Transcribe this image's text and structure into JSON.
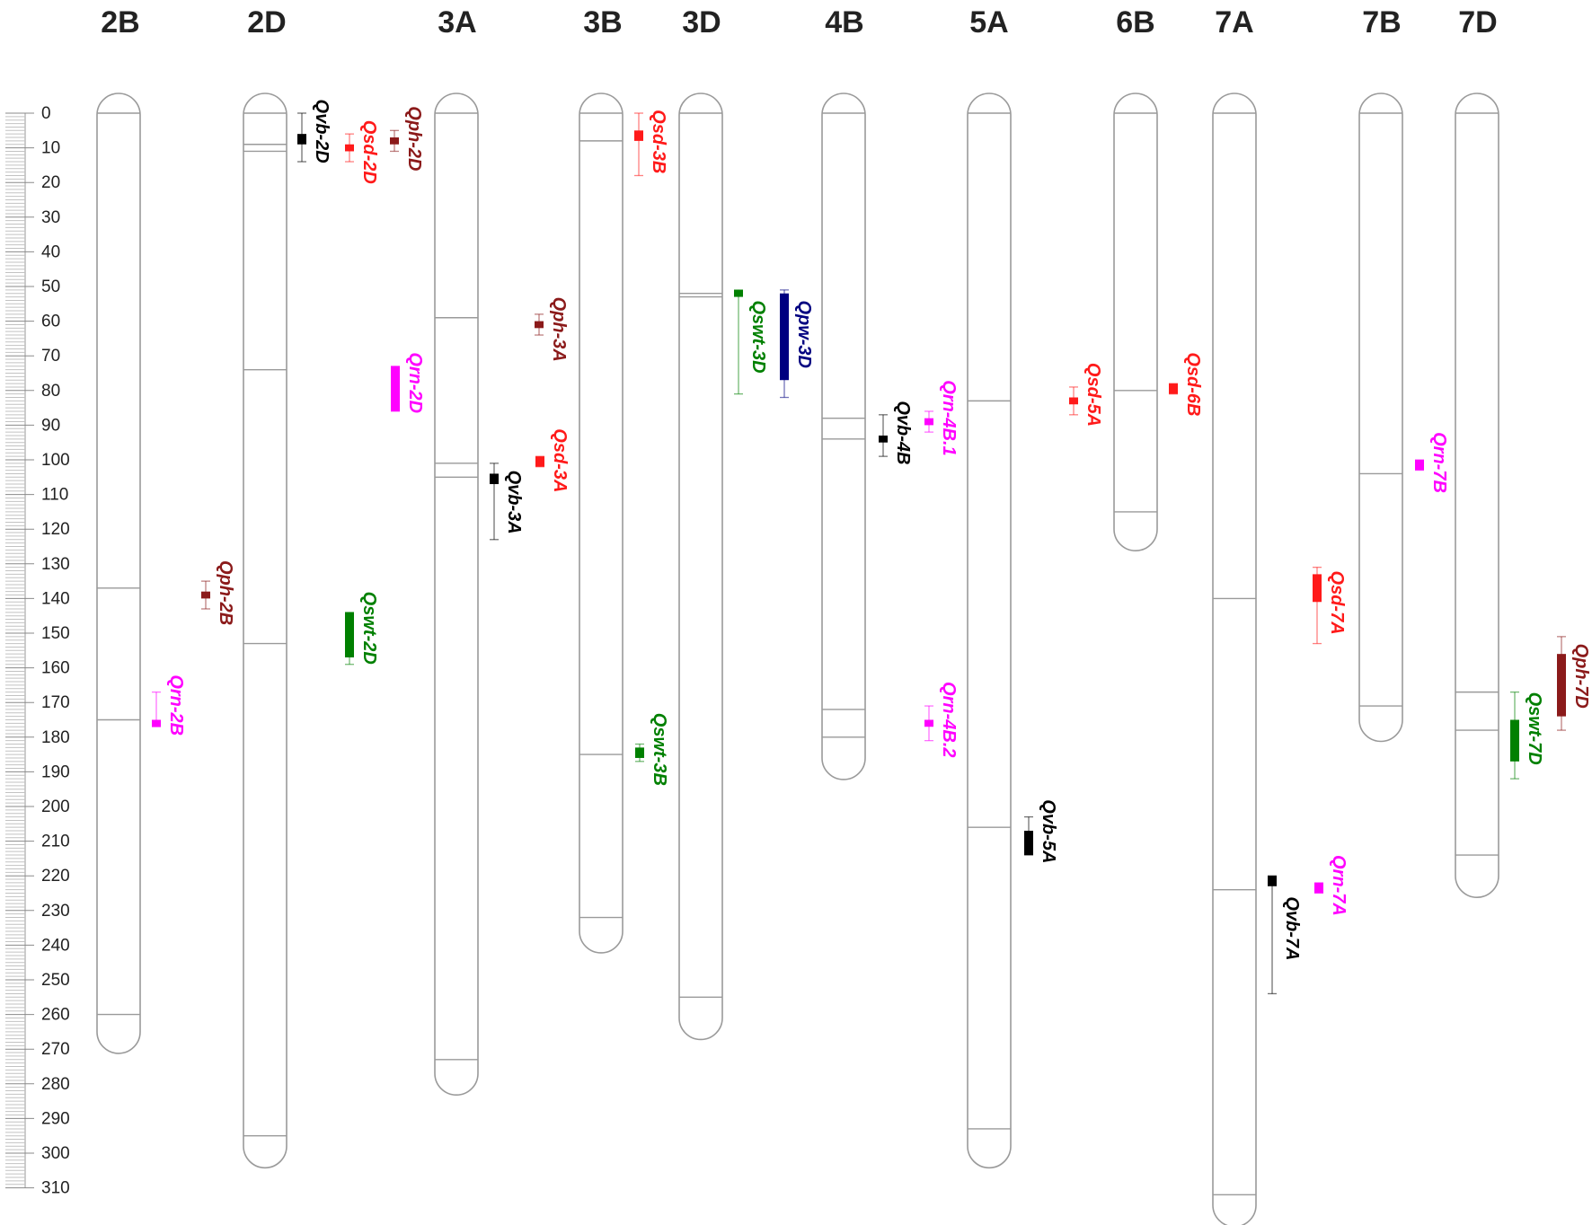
{
  "axis": {
    "unit": "cM",
    "min": 0,
    "max": 310,
    "major_step": 10,
    "minor_step": 1
  },
  "colors": {
    "outline": "#9a9a9a",
    "text": "#222222"
  },
  "chromosomes": [
    {
      "name": "2B",
      "length": 265,
      "bands": [
        0,
        137,
        175,
        260
      ]
    },
    {
      "name": "2D",
      "length": 298,
      "bands": [
        0,
        9,
        11,
        74,
        153,
        295
      ]
    },
    {
      "name": "3A",
      "length": 277,
      "bands": [
        0,
        59,
        101,
        105,
        273
      ]
    },
    {
      "name": "3B",
      "length": 236,
      "bands": [
        0,
        8,
        185,
        232
      ]
    },
    {
      "name": "3D",
      "length": 261,
      "bands": [
        0,
        52,
        53,
        255
      ]
    },
    {
      "name": "4B",
      "length": 186,
      "bands": [
        0,
        88,
        94,
        172,
        180
      ]
    },
    {
      "name": "5A",
      "length": 298,
      "bands": [
        0,
        83,
        206,
        293
      ]
    },
    {
      "name": "6B",
      "length": 120,
      "bands": [
        0,
        80,
        115
      ]
    },
    {
      "name": "7A",
      "length": 315,
      "bands": [
        0,
        140,
        224,
        312
      ]
    },
    {
      "name": "7B",
      "length": 175,
      "bands": [
        0,
        104,
        171
      ]
    },
    {
      "name": "7D",
      "length": 220,
      "bands": [
        0,
        167,
        178,
        214
      ]
    }
  ],
  "qtls": [
    {
      "label": "Qrn-2B",
      "color": "#ff00ff",
      "chrom": "2B",
      "ci": [
        167,
        177
      ],
      "peak": [
        175,
        177
      ],
      "label_start": 162
    },
    {
      "label": "Qph-2B",
      "color": "#8b1a1a",
      "chrom": "2B",
      "ci": [
        135,
        143
      ],
      "peak": [
        138,
        140
      ],
      "label_start": 129
    },
    {
      "label": "Qvb-2D",
      "color": "#000000",
      "chrom": "2D",
      "ci": [
        0,
        14
      ],
      "peak": [
        6,
        9
      ],
      "label_start": -4
    },
    {
      "label": "Qsd-2D",
      "color": "#ff1a1a",
      "chrom": "2D",
      "ci": [
        6,
        14
      ],
      "peak": [
        9,
        11
      ],
      "label_start": 2
    },
    {
      "label": "Qph-2D",
      "color": "#8b1a1a",
      "chrom": "2D",
      "ci": [
        5,
        11
      ],
      "peak": [
        7,
        9
      ],
      "label_start": -2
    },
    {
      "label": "Qswt-2D",
      "color": "#008000",
      "chrom": "2D",
      "ci": [
        144,
        159
      ],
      "peak": [
        144,
        157
      ],
      "label_start": 138
    },
    {
      "label": "Qrn-2D",
      "color": "#ff00ff",
      "chrom": "2D",
      "ci": [
        73,
        86
      ],
      "peak": [
        73,
        86
      ],
      "label_start": 69
    },
    {
      "label": "Qvb-3A",
      "color": "#000000",
      "chrom": "3A",
      "ci": [
        101,
        123
      ],
      "peak": [
        104,
        107
      ],
      "label_start": 103
    },
    {
      "label": "Qph-3A",
      "color": "#8b1a1a",
      "chrom": "3A",
      "ci": [
        58,
        64
      ],
      "peak": [
        60,
        62
      ],
      "label_start": 53
    },
    {
      "label": "Qsd-3A",
      "color": "#ff1a1a",
      "chrom": "3A",
      "ci": [
        99,
        102
      ],
      "peak": [
        99,
        102
      ],
      "label_start": 91
    },
    {
      "label": "Qsd-3B",
      "color": "#ff1a1a",
      "chrom": "3B",
      "ci": [
        0,
        18
      ],
      "peak": [
        5,
        8
      ],
      "label_start": -1
    },
    {
      "label": "Qswt-3B",
      "color": "#008000",
      "chrom": "3B",
      "ci": [
        182,
        187
      ],
      "peak": [
        183,
        186
      ],
      "label_start": 173
    },
    {
      "label": "Qswt-3D",
      "color": "#008000",
      "chrom": "3D",
      "ci": [
        51,
        81
      ],
      "peak": [
        51,
        53
      ],
      "label_start": 54
    },
    {
      "label": "Qpw-3D",
      "color": "#000080",
      "chrom": "3D",
      "ci": [
        51,
        82
      ],
      "peak": [
        52,
        77
      ],
      "label_start": 54
    },
    {
      "label": "Qvb-4B",
      "color": "#000000",
      "chrom": "4B",
      "ci": [
        87,
        99
      ],
      "peak": [
        93,
        95
      ],
      "label_start": 83
    },
    {
      "label": "Qrn-4B.1",
      "color": "#ff00ff",
      "chrom": "4B",
      "ci": [
        86,
        92
      ],
      "peak": [
        88,
        90
      ],
      "label_start": 77
    },
    {
      "label": "Qrn-4B.2",
      "color": "#ff00ff",
      "chrom": "4B",
      "ci": [
        171,
        181
      ],
      "peak": [
        175,
        177
      ],
      "label_start": 164
    },
    {
      "label": "Qvb-5A",
      "color": "#000000",
      "chrom": "5A",
      "ci": [
        203,
        214
      ],
      "peak": [
        207,
        214
      ],
      "label_start": 198
    },
    {
      "label": "Qsd-5A",
      "color": "#ff1a1a",
      "chrom": "5A",
      "ci": [
        79,
        87
      ],
      "peak": [
        82,
        84
      ],
      "label_start": 72
    },
    {
      "label": "Qsd-6B",
      "color": "#ff1a1a",
      "chrom": "6B",
      "ci": [
        78,
        81
      ],
      "peak": [
        78,
        81
      ],
      "label_start": 69
    },
    {
      "label": "Qrn-7B",
      "color": "#ff00ff",
      "chrom": "7B",
      "ci": [
        100,
        103
      ],
      "peak": [
        100,
        103
      ],
      "label_start": 92
    },
    {
      "label": "Qsd-7A",
      "color": "#ff1a1a",
      "chrom": "7A",
      "ci": [
        131,
        153
      ],
      "peak": [
        133,
        141
      ],
      "label_start": 132
    },
    {
      "label": "Qvb-7A",
      "color": "#000000",
      "chrom": "7A",
      "ci": [
        220,
        254
      ],
      "peak": [
        220,
        223
      ],
      "label_start": 226
    },
    {
      "label": "Qrn-7A",
      "color": "#ff00ff",
      "chrom": "7A",
      "ci": [
        222,
        225
      ],
      "peak": [
        222,
        225
      ],
      "label_start": 214
    },
    {
      "label": "Qph-7D",
      "color": "#8b1a1a",
      "chrom": "7D",
      "ci": [
        151,
        178
      ],
      "peak": [
        156,
        174
      ],
      "label_start": 153
    },
    {
      "label": "Qswt-7D",
      "color": "#008000",
      "chrom": "7D",
      "ci": [
        167,
        192
      ],
      "peak": [
        175,
        187
      ],
      "label_start": 167
    }
  ]
}
